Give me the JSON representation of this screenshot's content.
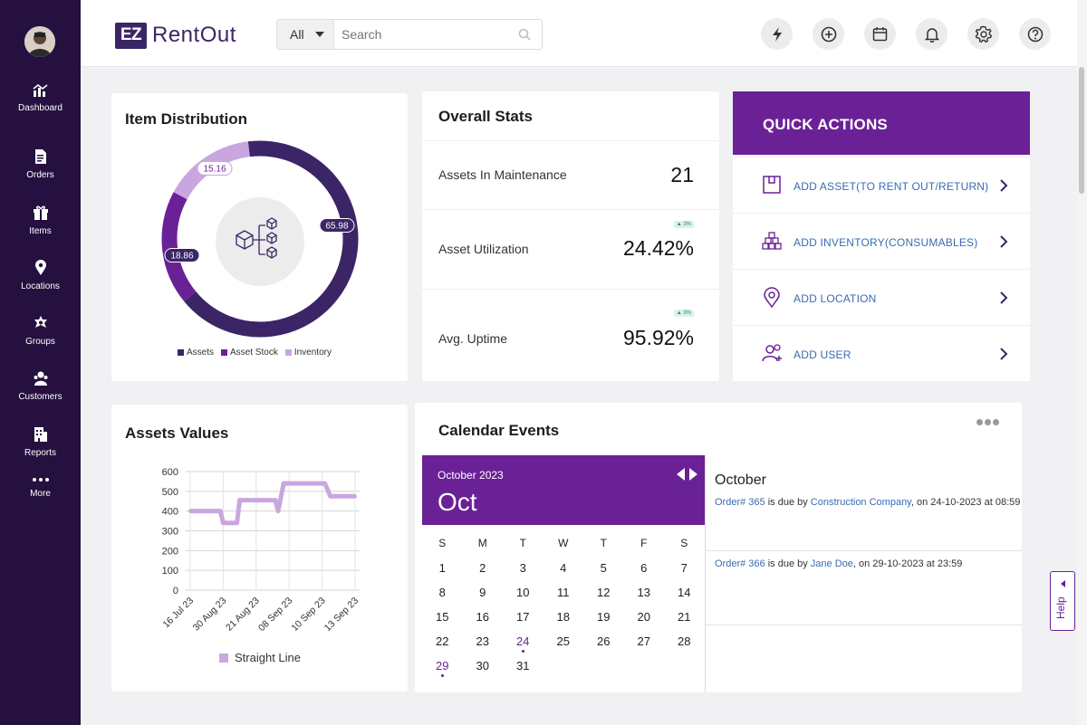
{
  "sidebar": {
    "items": [
      {
        "label": "Dashboard",
        "icon": "dashboard-icon"
      },
      {
        "label": "Orders",
        "icon": "orders-icon"
      },
      {
        "label": "Items",
        "icon": "gift-icon"
      },
      {
        "label": "Locations",
        "icon": "location-pin-icon"
      },
      {
        "label": "Groups",
        "icon": "groups-icon"
      },
      {
        "label": "Customers",
        "icon": "customers-icon"
      },
      {
        "label": "Reports",
        "icon": "reports-icon"
      },
      {
        "label": "More",
        "icon": "more-icon"
      }
    ]
  },
  "header": {
    "logo_mark": "EZ",
    "logo_text": "RentOut",
    "search_scope": "All",
    "search_placeholder": "Search",
    "buttons": [
      "lightning-icon",
      "add-icon",
      "calendar-icon",
      "bell-icon",
      "gear-icon",
      "help-icon"
    ]
  },
  "item_distribution": {
    "title": "Item Distribution",
    "segments": [
      {
        "label": "Assets",
        "value": "65.98",
        "color": "#3b2566"
      },
      {
        "label": "Asset Stock",
        "value": "18.86",
        "color": "#6b2196"
      },
      {
        "label": "Inventory",
        "value": "15.16",
        "color": "#c9a6e0"
      }
    ]
  },
  "overall_stats": {
    "title": "Overall Stats",
    "rows": [
      {
        "label": "Assets In Maintenance",
        "value": "21",
        "badge": ""
      },
      {
        "label": "Asset Utilization",
        "value": "24.42%",
        "badge": "▲ 3%"
      },
      {
        "label": "Avg. Uptime",
        "value": "95.92%",
        "badge": "▲ 3%"
      }
    ]
  },
  "quick_actions": {
    "title": "QUICK ACTIONS",
    "items": [
      {
        "label": "ADD ASSET(TO RENT OUT/RETURN)",
        "icon": "asset-box-icon"
      },
      {
        "label": "ADD INVENTORY(CONSUMABLES)",
        "icon": "inventory-boxes-icon"
      },
      {
        "label": "ADD LOCATION",
        "icon": "location-pin-icon"
      },
      {
        "label": "ADD  USER",
        "icon": "add-user-icon"
      }
    ]
  },
  "assets_values": {
    "title": "Assets Values",
    "legend": "Straight Line"
  },
  "chart_data": {
    "type": "line",
    "title": "Assets Values",
    "x": [
      "16 Jul 23",
      "30 Aug 23",
      "21 Aug 23",
      "08 Sep 23",
      "10 Sep 23",
      "13 Sep 23"
    ],
    "yticks": [
      "600",
      "500",
      "400",
      "300",
      "200",
      "100",
      "0"
    ],
    "ylim": [
      0,
      600
    ],
    "series": [
      {
        "name": "Straight Line",
        "points": [
          [
            0,
            400
          ],
          [
            0.55,
            400
          ],
          [
            0.6,
            340
          ],
          [
            0.85,
            340
          ],
          [
            0.9,
            455
          ],
          [
            1.55,
            455
          ],
          [
            1.6,
            400
          ],
          [
            1.7,
            540
          ],
          [
            2.45,
            540
          ],
          [
            2.55,
            475
          ],
          [
            3.0,
            475
          ]
        ]
      }
    ],
    "color": "#c9a6e0",
    "grid": true
  },
  "calendar": {
    "title": "Calendar Events",
    "month_year": "October 2023",
    "month_short": "Oct",
    "weekdays": [
      "S",
      "M",
      "T",
      "W",
      "T",
      "F",
      "S"
    ],
    "weeks": [
      [
        "1",
        "2",
        "3",
        "4",
        "5",
        "6",
        "7"
      ],
      [
        "8",
        "9",
        "10",
        "11",
        "12",
        "13",
        "14"
      ],
      [
        "15",
        "16",
        "17",
        "18",
        "19",
        "20",
        "21"
      ],
      [
        "22",
        "23",
        "24",
        "25",
        "26",
        "27",
        "28"
      ],
      [
        "29",
        "30",
        "31",
        "",
        "",
        "",
        ""
      ]
    ],
    "event_days": [
      "24",
      "29"
    ],
    "events_month": "October",
    "events": [
      {
        "order": "Order# 365",
        "mid": " is due by ",
        "party": "Construction Company",
        "tail": ", on 24-10-2023 at 08:59"
      },
      {
        "order": "Order# 366",
        "mid": " is due by ",
        "party": "Jane Doe",
        "tail": ", on 29-10-2023 at 23:59"
      }
    ]
  },
  "help_tab": "Help"
}
